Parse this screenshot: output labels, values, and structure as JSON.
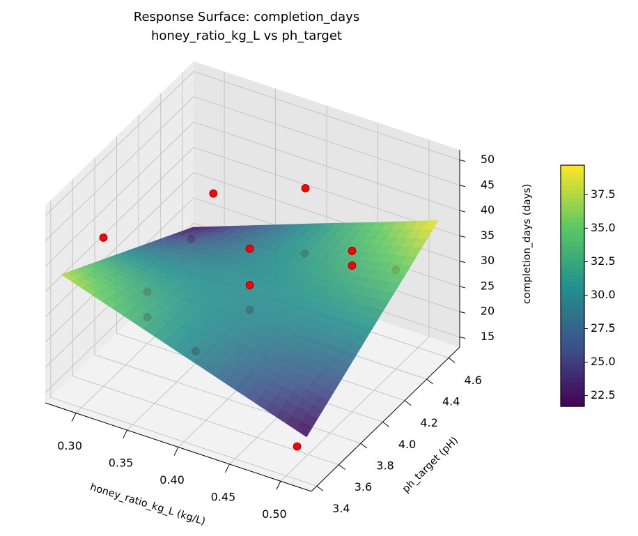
{
  "chart_data": {
    "type": "surface3d",
    "title": "Response Surface: completion_days",
    "subtitle": "honey_ratio_kg_L vs ph_target",
    "xlabel": "honey_ratio_kg_L (kg/L)",
    "ylabel": "ph_target (pH)",
    "zlabel": "completion_days (days)",
    "xlim": [
      0.27,
      0.53
    ],
    "ylim": [
      3.35,
      4.7
    ],
    "zlim": [
      13,
      52
    ],
    "xticks": [
      {
        "value": 0.3,
        "label": "0.30"
      },
      {
        "value": 0.35,
        "label": "0.35"
      },
      {
        "value": 0.4,
        "label": "0.40"
      },
      {
        "value": 0.45,
        "label": "0.45"
      },
      {
        "value": 0.5,
        "label": "0.50"
      }
    ],
    "yticks": [
      3.4,
      3.6,
      3.8,
      {
        "value": 4.0,
        "label": "4.0"
      },
      4.2,
      4.4,
      4.6
    ],
    "zticks": [
      15,
      20,
      25,
      30,
      35,
      40,
      45,
      50
    ],
    "colormap": "viridis",
    "clim": [
      21.7,
      39.7
    ],
    "colorbar_ticks": [
      22.5,
      {
        "value": 25,
        "label": "25.0"
      },
      27.5,
      {
        "value": 30,
        "label": "30.0"
      },
      32.5,
      {
        "value": 35,
        "label": "35.0"
      },
      37.5
    ],
    "surface": {
      "x": [
        0.28,
        0.34,
        0.4,
        0.46,
        0.52
      ],
      "y": [
        3.4,
        3.7,
        4.0,
        4.3,
        4.6
      ],
      "z": [
        [
          38,
          34,
          30,
          26,
          22
        ],
        [
          34,
          32.1,
          30.2,
          28.3,
          26.4
        ],
        [
          30,
          30.2,
          30.4,
          30.6,
          30.8
        ],
        [
          26,
          28.3,
          30.6,
          32.8,
          35.1
        ],
        [
          22,
          26.4,
          30.8,
          35.1,
          39.5
        ]
      ]
    },
    "points": {
      "color": "#ff0000",
      "x": [
        0.3,
        0.3,
        0.3,
        0.3,
        0.3,
        0.39,
        0.4,
        0.4,
        0.4,
        0.4,
        0.39,
        0.5,
        0.5,
        0.5,
        0.5
      ],
      "y": [
        3.6,
        4.0,
        4.0,
        4.4,
        4.6,
        3.6,
        4.0,
        4.0,
        4.0,
        4.5,
        4.6,
        4.0,
        4.0,
        4.4,
        3.5
      ],
      "z": [
        42.4,
        18.2,
        23.2,
        25.2,
        30,
        26,
        38.5,
        31.3,
        26.4,
        27,
        37.1,
        44.8,
        41.9,
        32.6,
        16.7
      ]
    }
  }
}
